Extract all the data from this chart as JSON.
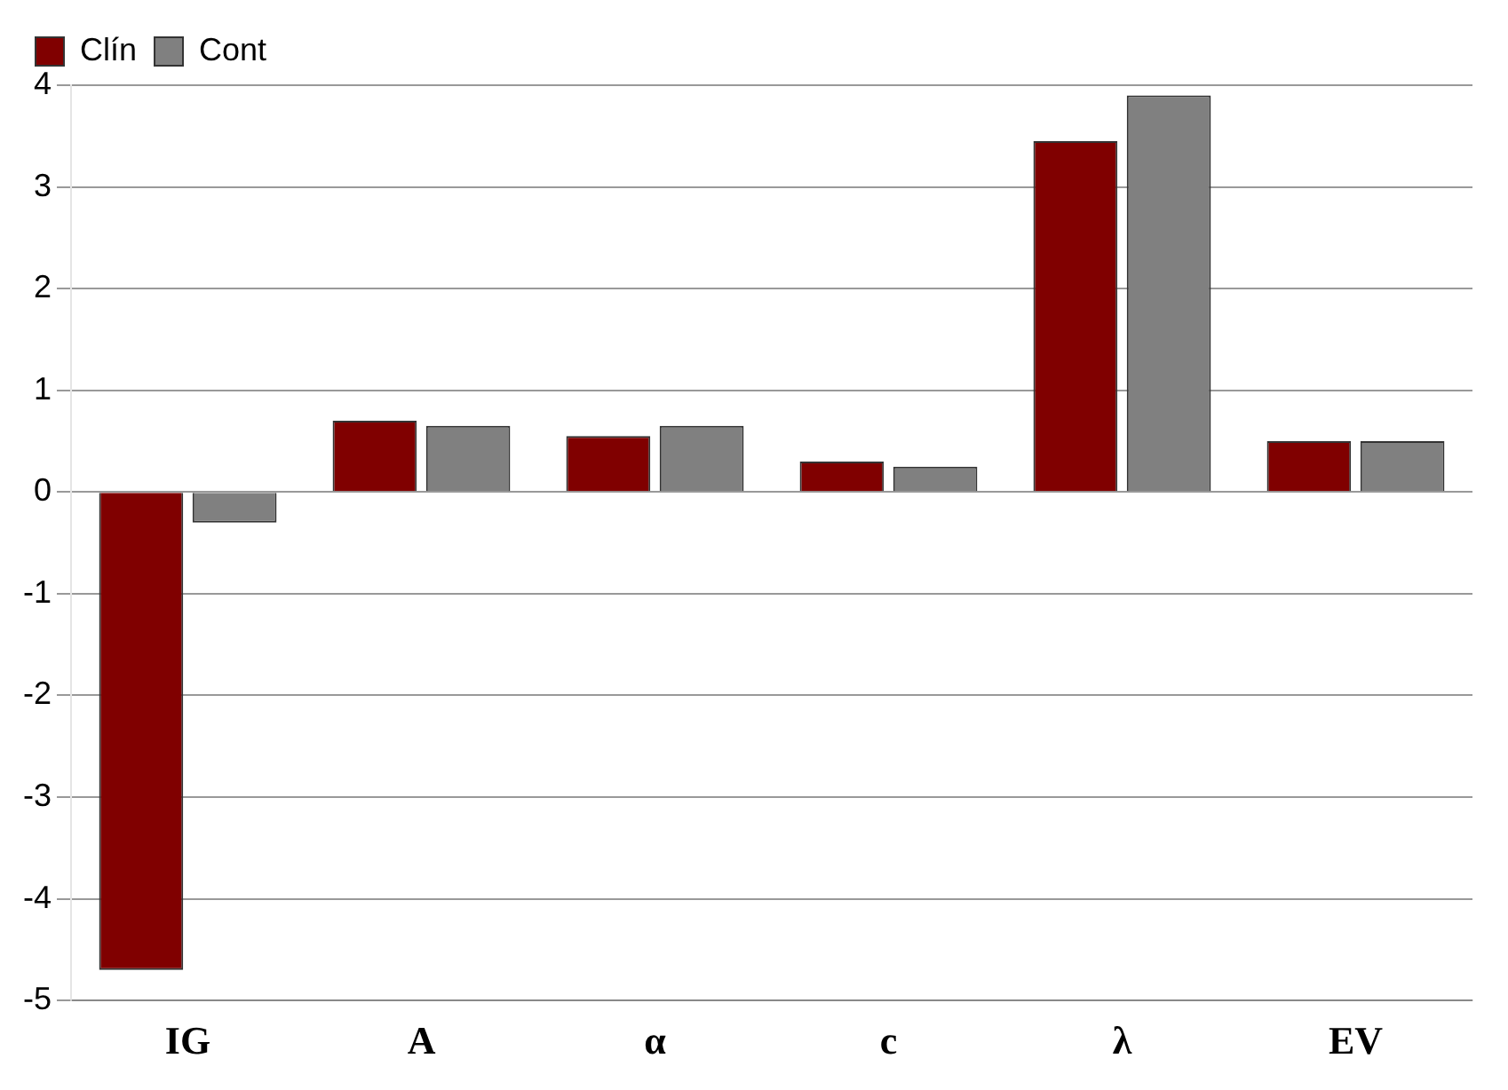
{
  "chart_data": {
    "type": "bar",
    "categories": [
      "IG",
      "A",
      "α",
      "c",
      "λ",
      "EV"
    ],
    "series": [
      {
        "name": "Clín",
        "color": "#800000",
        "values": [
          -4.7,
          0.7,
          0.55,
          0.3,
          3.45,
          0.5
        ]
      },
      {
        "name": "Cont",
        "color": "#808080",
        "values": [
          -0.3,
          0.65,
          0.65,
          0.25,
          3.9,
          0.5
        ]
      }
    ],
    "ylim": [
      -5,
      4
    ],
    "yticks": [
      -5,
      -4,
      -3,
      -2,
      -1,
      0,
      1,
      2,
      3,
      4
    ],
    "grid": "y",
    "legend": "top left"
  }
}
